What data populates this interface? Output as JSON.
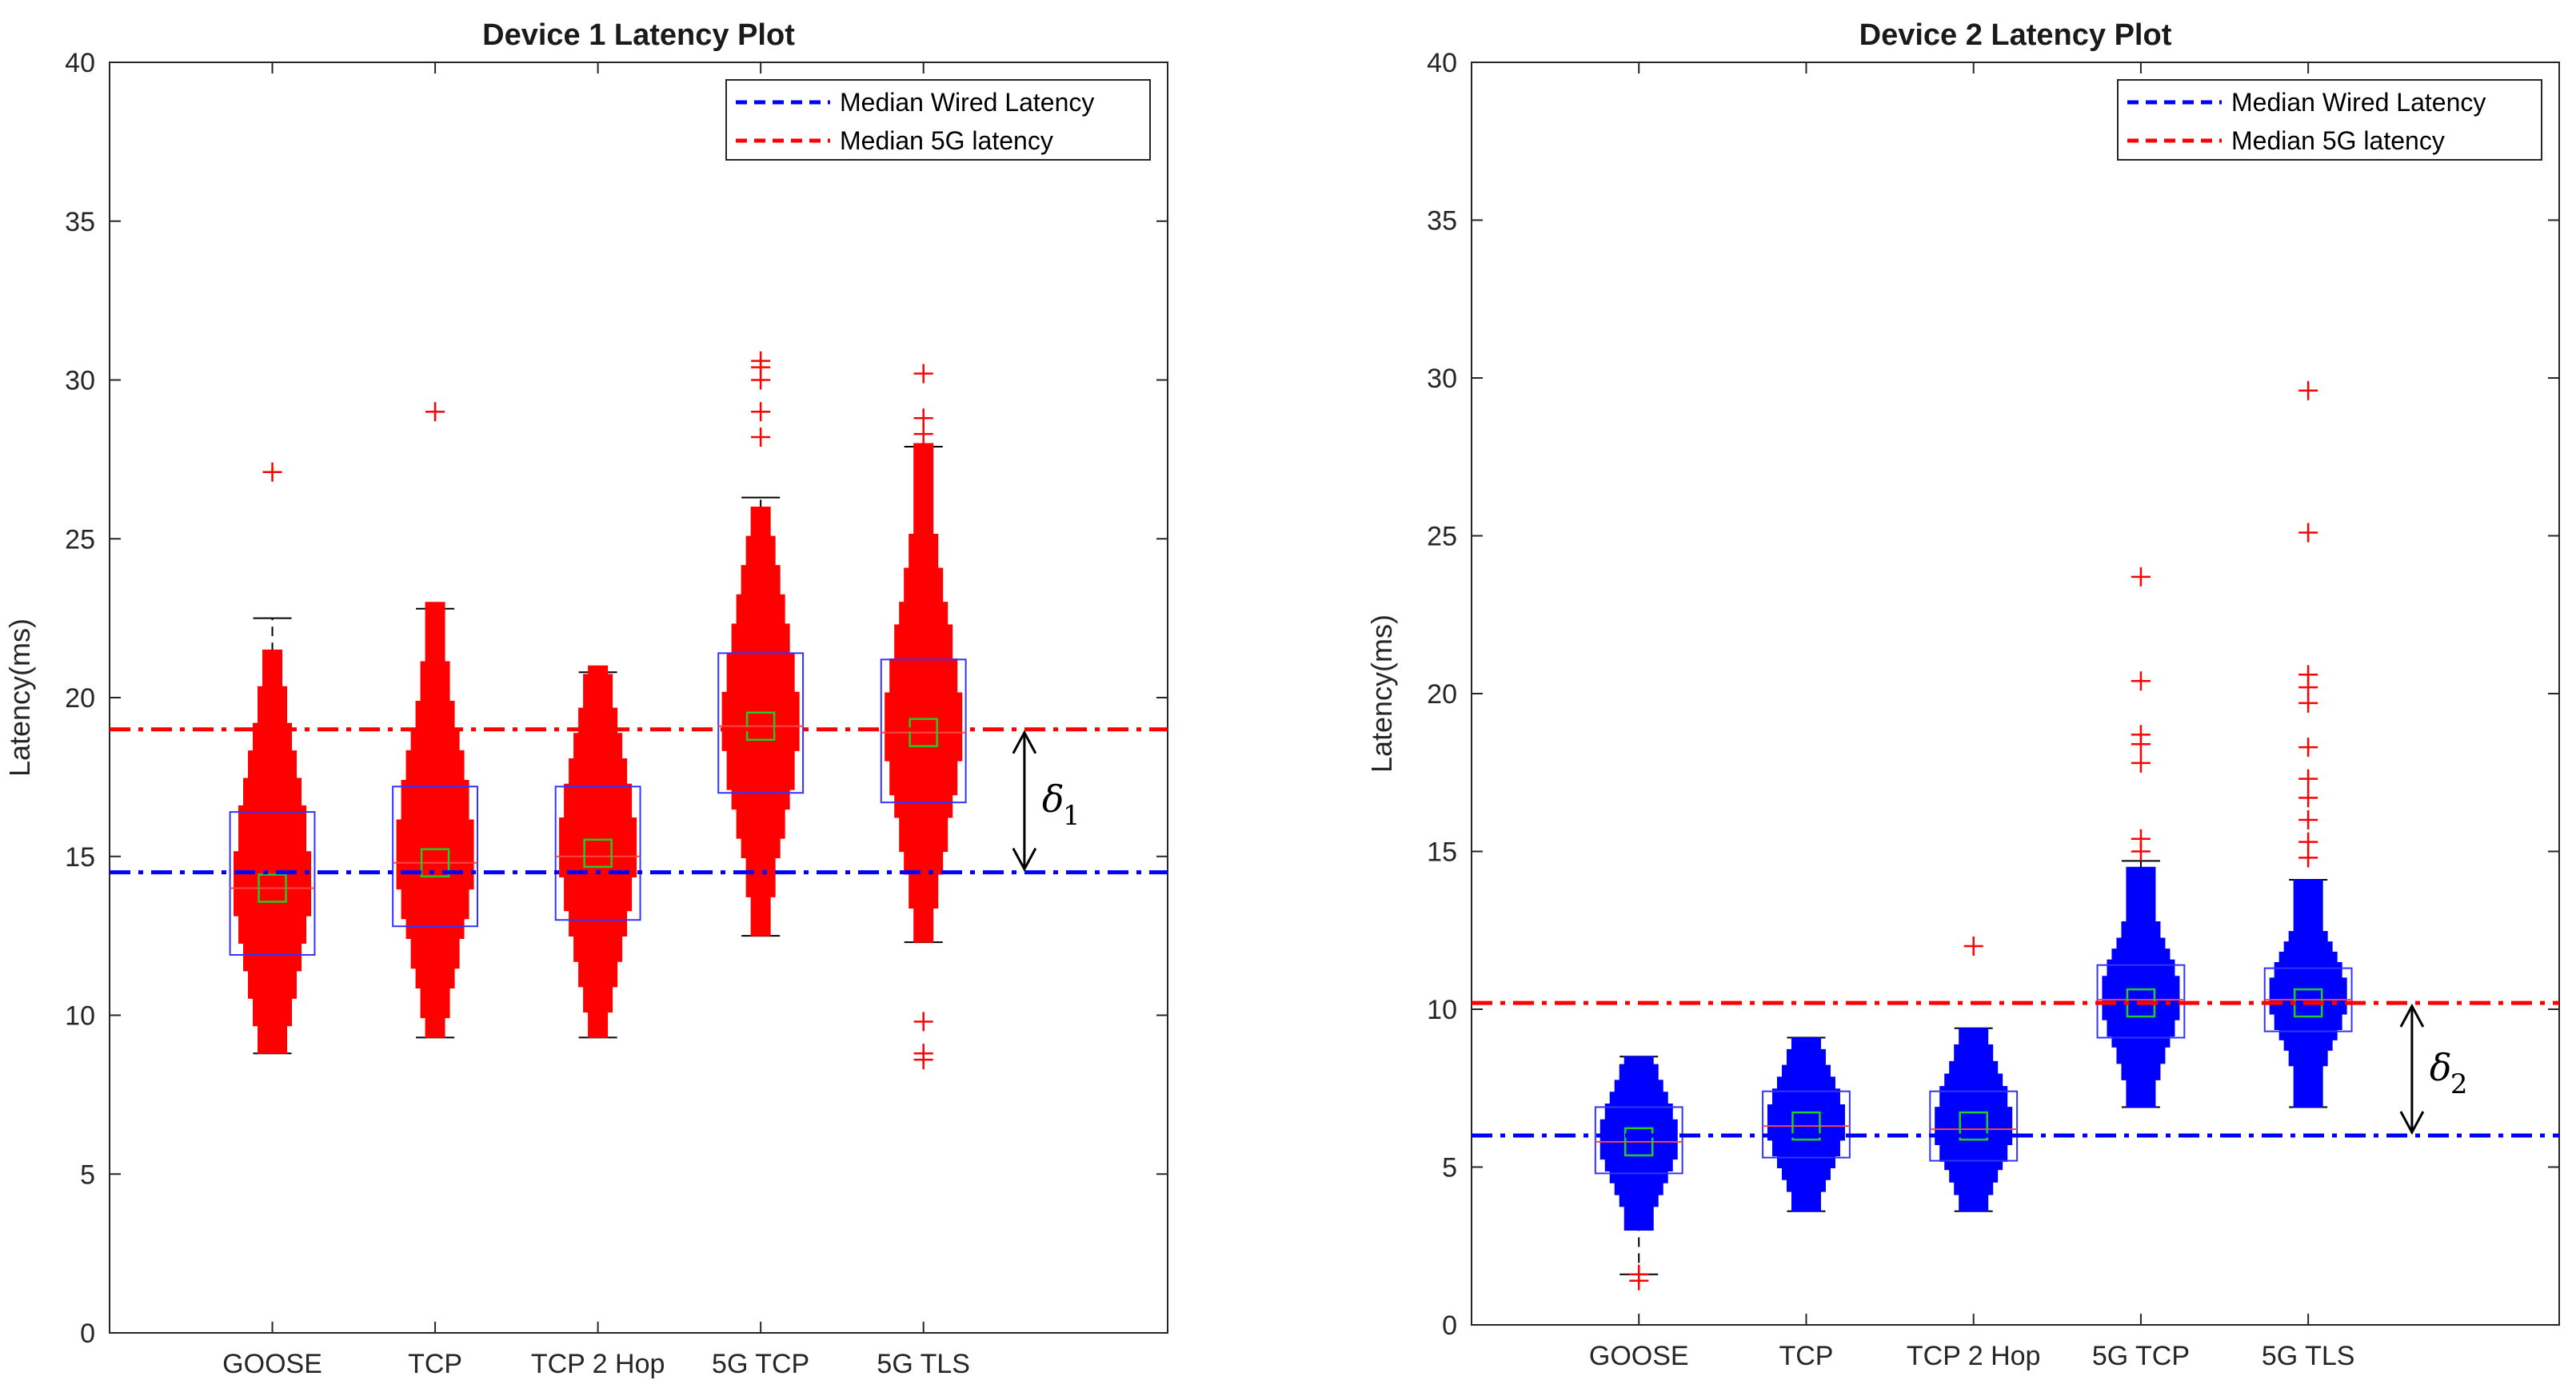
{
  "chart_data": [
    {
      "type": "boxplot",
      "title": "Device 1 Latency Plot",
      "xlabel": "",
      "ylabel": "Latency(ms)",
      "ylim": [
        0,
        40
      ],
      "yticks": [
        0,
        5,
        10,
        15,
        20,
        25,
        30,
        35,
        40
      ],
      "categories": [
        "GOOSE",
        "TCP",
        "TCP 2 Hop",
        "5G TCP",
        "5G TLS"
      ],
      "fill_color": "#ff0000",
      "box_color": "#3333ff",
      "mean_marker_color": "#22cc22",
      "outlier_color": "#ff0000",
      "boxes": [
        {
          "q1": 11.9,
          "median": 14.0,
          "q3": 16.4,
          "mean": 14.0,
          "whisker_low": 8.8,
          "whisker_high": 22.5,
          "dist_low": 8.8,
          "dist_high": 21.5,
          "outliers": [
            27.1
          ]
        },
        {
          "q1": 12.8,
          "median": 14.8,
          "q3": 17.2,
          "mean": 14.8,
          "whisker_low": 9.3,
          "whisker_high": 22.8,
          "dist_low": 9.3,
          "dist_high": 23.0,
          "outliers": [
            29.0
          ]
        },
        {
          "q1": 13.0,
          "median": 15.0,
          "q3": 17.2,
          "mean": 15.1,
          "whisker_low": 9.3,
          "whisker_high": 20.8,
          "dist_low": 9.3,
          "dist_high": 21.0,
          "outliers": []
        },
        {
          "q1": 17.0,
          "median": 19.1,
          "q3": 21.4,
          "mean": 19.1,
          "whisker_low": 12.5,
          "whisker_high": 26.3,
          "dist_low": 12.5,
          "dist_high": 26.0,
          "outliers": [
            28.2,
            29.0,
            30.0,
            30.4,
            30.6
          ]
        },
        {
          "q1": 16.7,
          "median": 18.9,
          "q3": 21.2,
          "mean": 18.9,
          "whisker_low": 12.3,
          "whisker_high": 27.9,
          "dist_low": 12.3,
          "dist_high": 28.0,
          "outliers": [
            8.6,
            8.8,
            9.8,
            28.3,
            28.8,
            30.2
          ]
        }
      ],
      "reference_lines": [
        {
          "label": "Median Wired Latency",
          "value": 14.5,
          "color": "#0000ff"
        },
        {
          "label": "Median 5G latency",
          "value": 19.0,
          "color": "#ff0000"
        }
      ],
      "annotation": {
        "symbol": "δ",
        "subscript": "1",
        "from": 19.0,
        "to": 14.5
      },
      "legend_position": "top-right"
    },
    {
      "type": "boxplot",
      "title": "Device 2 Latency Plot",
      "xlabel": "",
      "ylabel": "Latency(ms)",
      "ylim": [
        0,
        40
      ],
      "yticks": [
        0,
        5,
        10,
        15,
        20,
        25,
        30,
        35,
        40
      ],
      "categories": [
        "GOOSE",
        "TCP",
        "TCP 2 Hop",
        "5G TCP",
        "5G TLS"
      ],
      "fill_color": "#0000ff",
      "box_color": "#3333ff",
      "mean_marker_color": "#22cc22",
      "outlier_color": "#ff0000",
      "boxes": [
        {
          "q1": 4.8,
          "median": 5.8,
          "q3": 6.9,
          "mean": 5.8,
          "whisker_low": 1.6,
          "whisker_high": 8.5,
          "dist_low": 3.0,
          "dist_high": 8.5,
          "outliers": [
            1.4,
            1.6
          ]
        },
        {
          "q1": 5.3,
          "median": 6.3,
          "q3": 7.4,
          "mean": 6.3,
          "whisker_low": 3.6,
          "whisker_high": 9.1,
          "dist_low": 3.6,
          "dist_high": 9.1,
          "outliers": []
        },
        {
          "q1": 5.2,
          "median": 6.2,
          "q3": 7.4,
          "mean": 6.3,
          "whisker_low": 3.6,
          "whisker_high": 9.4,
          "dist_low": 3.6,
          "dist_high": 9.4,
          "outliers": [
            12.0
          ]
        },
        {
          "q1": 9.1,
          "median": 10.3,
          "q3": 11.4,
          "mean": 10.2,
          "whisker_low": 6.9,
          "whisker_high": 14.7,
          "dist_low": 6.9,
          "dist_high": 14.5,
          "outliers": [
            15.0,
            15.4,
            17.8,
            18.4,
            18.7,
            20.4,
            23.7
          ]
        },
        {
          "q1": 9.3,
          "median": 10.3,
          "q3": 11.3,
          "mean": 10.2,
          "whisker_low": 6.9,
          "whisker_high": 14.1,
          "dist_low": 6.9,
          "dist_high": 14.1,
          "outliers": [
            14.8,
            15.3,
            16.0,
            16.7,
            17.3,
            18.3,
            19.7,
            20.2,
            20.6,
            25.1,
            29.6
          ]
        }
      ],
      "reference_lines": [
        {
          "label": "Median Wired Latency",
          "value": 6.0,
          "color": "#0000ff"
        },
        {
          "label": "Median 5G latency",
          "value": 10.2,
          "color": "#ff0000"
        }
      ],
      "annotation": {
        "symbol": "δ",
        "subscript": "2",
        "from": 10.2,
        "to": 6.0
      },
      "legend_position": "top-right"
    }
  ]
}
